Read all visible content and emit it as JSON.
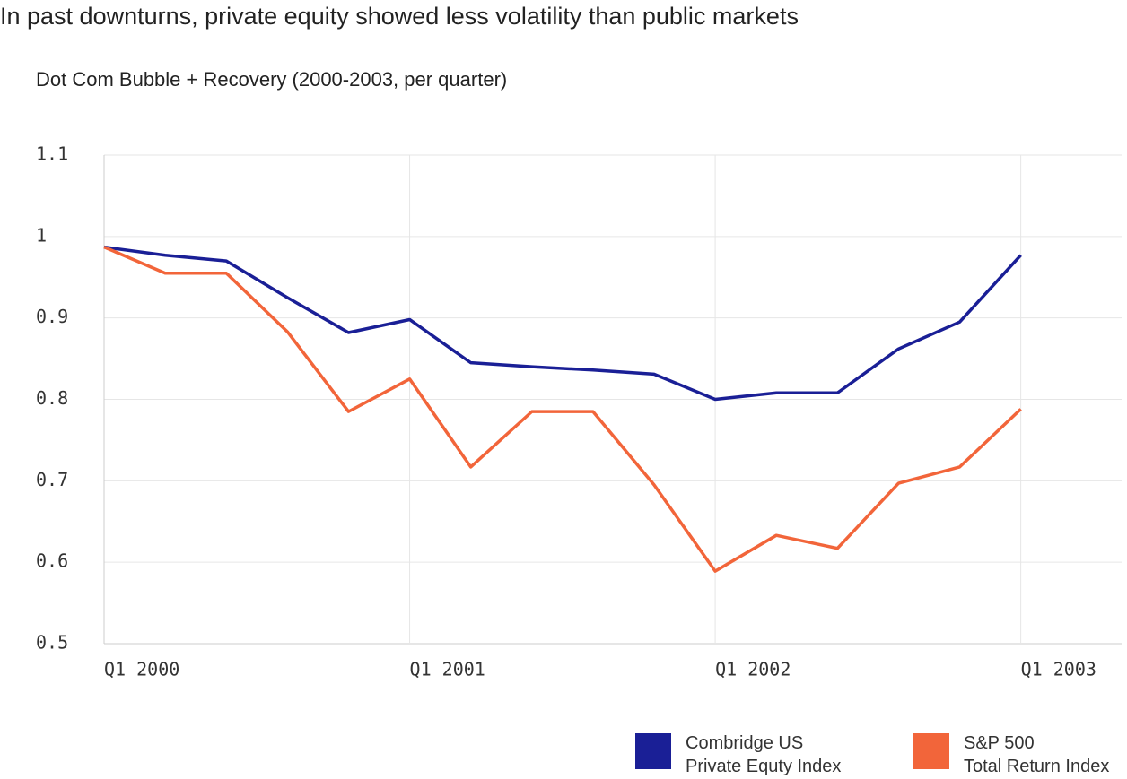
{
  "chart_data": {
    "type": "line",
    "title": "In past downturns, private equity showed less volatility than public markets",
    "subtitle": "Dot Com Bubble + Recovery (2000-2003, per quarter)",
    "x": [
      2000,
      2000.2,
      2000.4,
      2000.6,
      2000.8,
      2001,
      2001.2,
      2001.4,
      2001.6,
      2001.8,
      2002,
      2002.2,
      2002.4,
      2002.6,
      2002.8,
      2003
    ],
    "series": [
      {
        "name": "Combridge US\nPrivate Equty Index",
        "color": "#1a1f96",
        "values": [
          0.987,
          0.977,
          0.97,
          0.925,
          0.882,
          0.898,
          0.845,
          0.84,
          0.836,
          0.831,
          0.8,
          0.808,
          0.808,
          0.862,
          0.895,
          0.977
        ]
      },
      {
        "name": "S&P 500\nTotal Return Index",
        "color": "#f2653a",
        "values": [
          0.987,
          0.955,
          0.955,
          0.883,
          0.785,
          0.825,
          0.717,
          0.785,
          0.785,
          0.695,
          0.589,
          0.633,
          0.617,
          0.697,
          0.717,
          0.788
        ]
      }
    ],
    "xlim": [
      2000,
      2003.33
    ],
    "xticks": [
      {
        "value": 2000,
        "label": "Q1 2000"
      },
      {
        "value": 2001,
        "label": "Q1 2001"
      },
      {
        "value": 2002,
        "label": "Q1 2002"
      },
      {
        "value": 2003,
        "label": "Q1 2003"
      }
    ],
    "ylim": [
      0.5,
      1.1
    ],
    "yticks": [
      0.5,
      0.6,
      0.7,
      0.8,
      0.9,
      1.0,
      1.1
    ],
    "grid": true
  }
}
